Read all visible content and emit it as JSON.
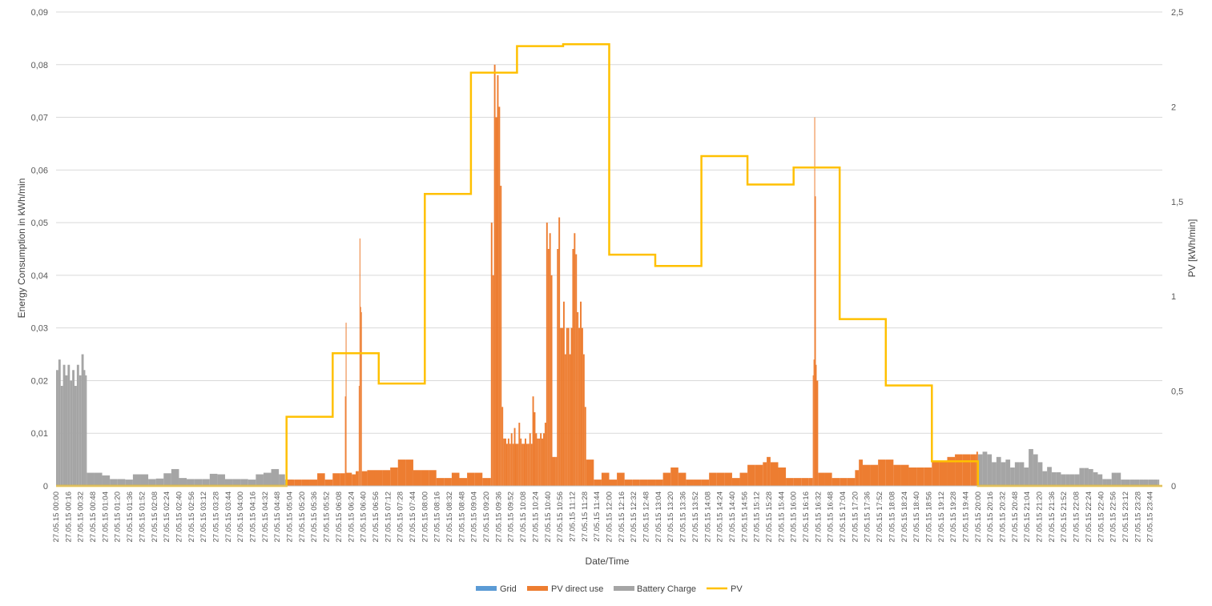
{
  "chart_data": {
    "type": "bar",
    "xlabel": "Date/Time",
    "ylabel": "Energy Consumption in kWh/min",
    "y2label": "PV [kWh/min]",
    "ylim": [
      0,
      0.09
    ],
    "y2lim": [
      0,
      2.5
    ],
    "y_ticks": [
      "0",
      "0,01",
      "0,02",
      "0,03",
      "0,04",
      "0,05",
      "0,06",
      "0,07",
      "0,08",
      "0,09"
    ],
    "y2_ticks": [
      "0",
      "0,5",
      "1",
      "1,5",
      "2",
      "2,5"
    ],
    "date_prefix": "27.05.15",
    "x_range_minutes": [
      0,
      1440
    ],
    "tick_interval_minutes": 16,
    "gridlines": true,
    "legend_position": "bottom",
    "colors": {
      "Grid": "#5b9bd5",
      "PV direct use": "#ed7d31",
      "Battery Charge": "#a5a5a5",
      "PV": "#ffc000"
    },
    "series": [
      {
        "name": "Grid",
        "type": "bar",
        "axis": "left",
        "points": []
      },
      {
        "name": "Battery Charge",
        "type": "bar",
        "axis": "left",
        "points": [
          [
            0,
            0.022
          ],
          [
            3,
            0.024
          ],
          [
            6,
            0.019
          ],
          [
            9,
            0.023
          ],
          [
            12,
            0.021
          ],
          [
            15,
            0.023
          ],
          [
            18,
            0.02
          ],
          [
            21,
            0.022
          ],
          [
            24,
            0.019
          ],
          [
            27,
            0.023
          ],
          [
            30,
            0.021
          ],
          [
            33,
            0.025
          ],
          [
            36,
            0.022
          ],
          [
            38,
            0.021
          ],
          [
            40,
            0.0025
          ],
          [
            50,
            0.0025
          ],
          [
            60,
            0.002
          ],
          [
            70,
            0.0013
          ],
          [
            80,
            0.0013
          ],
          [
            90,
            0.0012
          ],
          [
            100,
            0.0022
          ],
          [
            110,
            0.0022
          ],
          [
            120,
            0.0013
          ],
          [
            130,
            0.0014
          ],
          [
            140,
            0.0024
          ],
          [
            150,
            0.0032
          ],
          [
            160,
            0.0015
          ],
          [
            170,
            0.0013
          ],
          [
            180,
            0.0013
          ],
          [
            190,
            0.0013
          ],
          [
            200,
            0.0023
          ],
          [
            210,
            0.0022
          ],
          [
            220,
            0.0013
          ],
          [
            230,
            0.0013
          ],
          [
            240,
            0.0013
          ],
          [
            250,
            0.0012
          ],
          [
            260,
            0.0022
          ],
          [
            270,
            0.0025
          ],
          [
            280,
            0.0032
          ],
          [
            290,
            0.0022
          ],
          [
            298,
            0.0012
          ],
          [
            1200,
            0.006
          ],
          [
            1206,
            0.0065
          ],
          [
            1212,
            0.006
          ],
          [
            1218,
            0.0045
          ],
          [
            1224,
            0.0055
          ],
          [
            1230,
            0.0045
          ],
          [
            1236,
            0.005
          ],
          [
            1242,
            0.0035
          ],
          [
            1248,
            0.0045
          ],
          [
            1254,
            0.0045
          ],
          [
            1260,
            0.0035
          ],
          [
            1266,
            0.007
          ],
          [
            1272,
            0.006
          ],
          [
            1278,
            0.0045
          ],
          [
            1284,
            0.0028
          ],
          [
            1290,
            0.0036
          ],
          [
            1296,
            0.0026
          ],
          [
            1302,
            0.0026
          ],
          [
            1308,
            0.0022
          ],
          [
            1314,
            0.0022
          ],
          [
            1320,
            0.0022
          ],
          [
            1326,
            0.0022
          ],
          [
            1332,
            0.0034
          ],
          [
            1338,
            0.0034
          ],
          [
            1344,
            0.0032
          ],
          [
            1350,
            0.0026
          ],
          [
            1356,
            0.0022
          ],
          [
            1362,
            0.0013
          ],
          [
            1368,
            0.0013
          ],
          [
            1374,
            0.0025
          ],
          [
            1380,
            0.0025
          ],
          [
            1386,
            0.0012
          ],
          [
            1392,
            0.0012
          ],
          [
            1398,
            0.0012
          ],
          [
            1404,
            0.0012
          ],
          [
            1410,
            0.0012
          ],
          [
            1416,
            0.0012
          ],
          [
            1422,
            0.0012
          ],
          [
            1428,
            0.0012
          ],
          [
            1434,
            0.0012
          ]
        ]
      },
      {
        "name": "PV direct use",
        "type": "bar",
        "axis": "left",
        "points": [
          [
            300,
            0.0012
          ],
          [
            310,
            0.0012
          ],
          [
            320,
            0.0012
          ],
          [
            330,
            0.0012
          ],
          [
            340,
            0.0024
          ],
          [
            350,
            0.0012
          ],
          [
            360,
            0.0024
          ],
          [
            370,
            0.0024
          ],
          [
            376,
            0.017
          ],
          [
            377,
            0.031
          ],
          [
            378,
            0.0025
          ],
          [
            385,
            0.0022
          ],
          [
            390,
            0.0028
          ],
          [
            394,
            0.019
          ],
          [
            395,
            0.047
          ],
          [
            396,
            0.034
          ],
          [
            397,
            0.033
          ],
          [
            398,
            0.0028
          ],
          [
            405,
            0.003
          ],
          [
            415,
            0.003
          ],
          [
            425,
            0.003
          ],
          [
            435,
            0.0035
          ],
          [
            445,
            0.005
          ],
          [
            455,
            0.005
          ],
          [
            465,
            0.003
          ],
          [
            475,
            0.003
          ],
          [
            485,
            0.003
          ],
          [
            495,
            0.0015
          ],
          [
            505,
            0.0015
          ],
          [
            515,
            0.0025
          ],
          [
            525,
            0.0015
          ],
          [
            535,
            0.0025
          ],
          [
            545,
            0.0025
          ],
          [
            555,
            0.0015
          ],
          [
            562,
            0.0015
          ],
          [
            566,
            0.05
          ],
          [
            568,
            0.04
          ],
          [
            570,
            0.08
          ],
          [
            572,
            0.07
          ],
          [
            574,
            0.078
          ],
          [
            576,
            0.072
          ],
          [
            578,
            0.057
          ],
          [
            580,
            0.015
          ],
          [
            582,
            0.009
          ],
          [
            584,
            0.009
          ],
          [
            586,
            0.008
          ],
          [
            588,
            0.009
          ],
          [
            590,
            0.008
          ],
          [
            592,
            0.01
          ],
          [
            594,
            0.008
          ],
          [
            596,
            0.011
          ],
          [
            598,
            0.008
          ],
          [
            600,
            0.008
          ],
          [
            602,
            0.012
          ],
          [
            604,
            0.009
          ],
          [
            606,
            0.008
          ],
          [
            608,
            0.008
          ],
          [
            610,
            0.009
          ],
          [
            612,
            0.008
          ],
          [
            614,
            0.008
          ],
          [
            616,
            0.01
          ],
          [
            618,
            0.008
          ],
          [
            620,
            0.017
          ],
          [
            622,
            0.014
          ],
          [
            624,
            0.01
          ],
          [
            626,
            0.009
          ],
          [
            628,
            0.009
          ],
          [
            630,
            0.01
          ],
          [
            632,
            0.009
          ],
          [
            634,
            0.01
          ],
          [
            636,
            0.012
          ],
          [
            638,
            0.05
          ],
          [
            640,
            0.045
          ],
          [
            642,
            0.048
          ],
          [
            644,
            0.04
          ],
          [
            646,
            0.0055
          ],
          [
            648,
            0.0055
          ],
          [
            650,
            0.0055
          ],
          [
            652,
            0.045
          ],
          [
            654,
            0.051
          ],
          [
            656,
            0.03
          ],
          [
            658,
            0.03
          ],
          [
            660,
            0.035
          ],
          [
            662,
            0.025
          ],
          [
            664,
            0.03
          ],
          [
            666,
            0.03
          ],
          [
            668,
            0.025
          ],
          [
            670,
            0.03
          ],
          [
            672,
            0.045
          ],
          [
            674,
            0.048
          ],
          [
            676,
            0.044
          ],
          [
            678,
            0.033
          ],
          [
            680,
            0.03
          ],
          [
            682,
            0.035
          ],
          [
            684,
            0.03
          ],
          [
            686,
            0.025
          ],
          [
            688,
            0.015
          ],
          [
            690,
            0.005
          ],
          [
            700,
            0.0012
          ],
          [
            710,
            0.0025
          ],
          [
            720,
            0.0012
          ],
          [
            730,
            0.0025
          ],
          [
            740,
            0.0012
          ],
          [
            750,
            0.0012
          ],
          [
            760,
            0.0012
          ],
          [
            770,
            0.0012
          ],
          [
            780,
            0.0012
          ],
          [
            790,
            0.0025
          ],
          [
            800,
            0.0035
          ],
          [
            810,
            0.0025
          ],
          [
            820,
            0.0012
          ],
          [
            830,
            0.0012
          ],
          [
            840,
            0.0012
          ],
          [
            850,
            0.0025
          ],
          [
            860,
            0.0025
          ],
          [
            870,
            0.0025
          ],
          [
            880,
            0.0015
          ],
          [
            890,
            0.0025
          ],
          [
            900,
            0.004
          ],
          [
            910,
            0.004
          ],
          [
            920,
            0.0045
          ],
          [
            925,
            0.0055
          ],
          [
            930,
            0.0045
          ],
          [
            940,
            0.0035
          ],
          [
            950,
            0.0015
          ],
          [
            960,
            0.0015
          ],
          [
            970,
            0.0015
          ],
          [
            980,
            0.0015
          ],
          [
            985,
            0.021
          ],
          [
            986,
            0.024
          ],
          [
            987,
            0.07
          ],
          [
            988,
            0.055
          ],
          [
            989,
            0.023
          ],
          [
            990,
            0.02
          ],
          [
            992,
            0.0025
          ],
          [
            1000,
            0.0025
          ],
          [
            1010,
            0.0015
          ],
          [
            1020,
            0.0015
          ],
          [
            1030,
            0.0015
          ],
          [
            1040,
            0.003
          ],
          [
            1045,
            0.005
          ],
          [
            1050,
            0.004
          ],
          [
            1060,
            0.004
          ],
          [
            1070,
            0.005
          ],
          [
            1080,
            0.005
          ],
          [
            1090,
            0.004
          ],
          [
            1100,
            0.004
          ],
          [
            1110,
            0.0035
          ],
          [
            1120,
            0.0035
          ],
          [
            1130,
            0.0035
          ],
          [
            1140,
            0.0045
          ],
          [
            1150,
            0.0045
          ],
          [
            1160,
            0.0055
          ],
          [
            1170,
            0.006
          ],
          [
            1180,
            0.006
          ],
          [
            1190,
            0.006
          ],
          [
            1198,
            0.0065
          ]
        ]
      },
      {
        "name": "PV",
        "type": "line",
        "axis": "right",
        "points": [
          [
            0,
            0
          ],
          [
            300,
            0
          ],
          [
            300,
            0.365
          ],
          [
            360,
            0.365
          ],
          [
            360,
            0.7
          ],
          [
            420,
            0.7
          ],
          [
            420,
            0.54
          ],
          [
            480,
            0.54
          ],
          [
            480,
            1.54
          ],
          [
            540,
            1.54
          ],
          [
            540,
            2.18
          ],
          [
            600,
            2.18
          ],
          [
            600,
            2.32
          ],
          [
            660,
            2.32
          ],
          [
            660,
            2.33
          ],
          [
            720,
            2.33
          ],
          [
            720,
            1.22
          ],
          [
            780,
            1.22
          ],
          [
            780,
            1.16
          ],
          [
            840,
            1.16
          ],
          [
            840,
            1.74
          ],
          [
            900,
            1.74
          ],
          [
            900,
            1.59
          ],
          [
            960,
            1.59
          ],
          [
            960,
            1.68
          ],
          [
            1020,
            1.68
          ],
          [
            1020,
            0.88
          ],
          [
            1080,
            0.88
          ],
          [
            1080,
            0.53
          ],
          [
            1140,
            0.53
          ],
          [
            1140,
            0.13
          ],
          [
            1200,
            0.13
          ],
          [
            1200,
            0
          ],
          [
            1440,
            0
          ]
        ]
      }
    ]
  }
}
